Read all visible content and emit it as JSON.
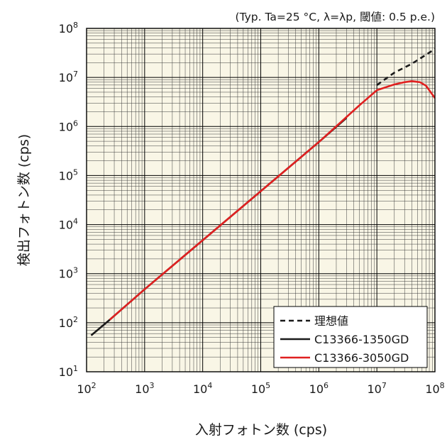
{
  "chart_data": {
    "type": "line",
    "note": "(Typ. Ta=25 °C, λ=λp, 閾値: 0.5 p.e.)",
    "xlabel": "入射フォトン数 (cps)",
    "ylabel": "検出フォトン数 (cps)",
    "x_scale": "log",
    "y_scale": "log",
    "xlim": [
      100,
      100000000
    ],
    "ylim": [
      10,
      100000000
    ],
    "x_ticks": [
      {
        "base": "10",
        "exp": "2"
      },
      {
        "base": "10",
        "exp": "3"
      },
      {
        "base": "10",
        "exp": "4"
      },
      {
        "base": "10",
        "exp": "5"
      },
      {
        "base": "10",
        "exp": "6"
      },
      {
        "base": "10",
        "exp": "7"
      },
      {
        "base": "10",
        "exp": "8"
      }
    ],
    "y_ticks": [
      {
        "base": "10",
        "exp": "1"
      },
      {
        "base": "10",
        "exp": "2"
      },
      {
        "base": "10",
        "exp": "3"
      },
      {
        "base": "10",
        "exp": "4"
      },
      {
        "base": "10",
        "exp": "5"
      },
      {
        "base": "10",
        "exp": "6"
      },
      {
        "base": "10",
        "exp": "7"
      },
      {
        "base": "10",
        "exp": "8"
      }
    ],
    "grid": true,
    "legend_position": "bottom-right",
    "series": [
      {
        "name": "理想値",
        "color": "#1a1a1a",
        "style": "dashed",
        "x": [
          10000000,
          20000000,
          40000000,
          100000000
        ],
        "y": [
          7000000,
          12500000,
          19000000,
          38000000
        ]
      },
      {
        "name": "C13366-1350GD",
        "color": "#1a1a1a",
        "style": "solid",
        "x": [
          120,
          250,
          1000,
          10000,
          100000,
          1000000,
          3000000
        ],
        "y": [
          55,
          115,
          480,
          4800,
          48000,
          480000,
          1500000
        ]
      },
      {
        "name": "C13366-3050GD",
        "color": "#e02020",
        "style": "solid",
        "x": [
          250,
          1000,
          10000,
          100000,
          1000000,
          5000000,
          10000000,
          20000000,
          30000000,
          40000000,
          55000000,
          70000000,
          100000000
        ],
        "y": [
          115,
          480,
          4800,
          48000,
          480000,
          2700000,
          5500000,
          7200000,
          8000000,
          8400000,
          8000000,
          6800000,
          3800000
        ]
      }
    ]
  }
}
